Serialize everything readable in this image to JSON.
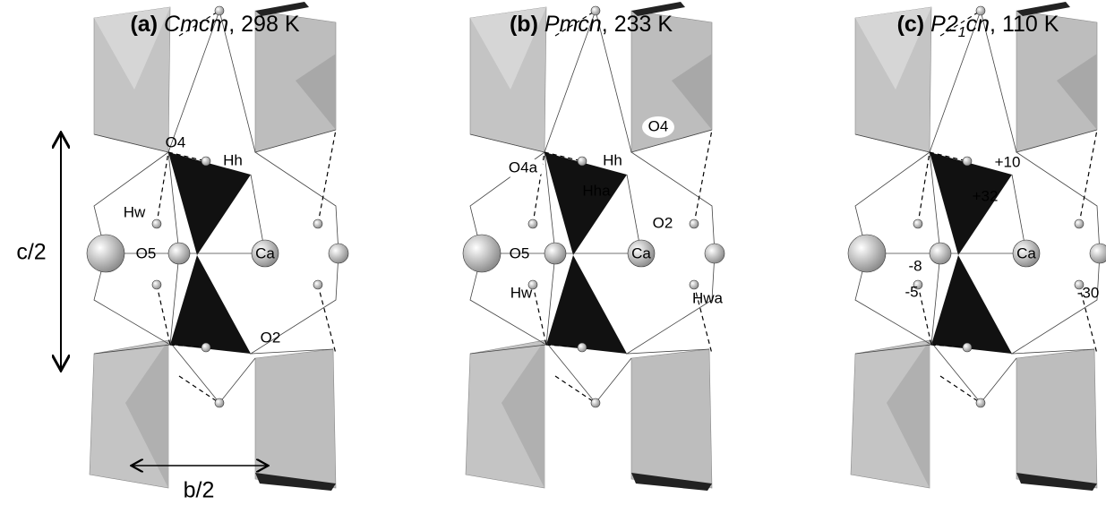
{
  "panels": [
    {
      "label": "(a)",
      "space_group": [
        {
          "text": "Cmcm"
        }
      ],
      "suffix": ", 298 K",
      "atoms": [
        "O4",
        "Hh",
        "Hw",
        "O5",
        "Ca",
        "O2"
      ]
    },
    {
      "label": "(b)",
      "space_group": [
        {
          "text": "Pmcn"
        }
      ],
      "suffix": ", 233 K",
      "atoms": [
        "Hh",
        "O4",
        "O4a",
        "Hha",
        "O2",
        "O5",
        "Ca",
        "Hw",
        "Hwa"
      ]
    },
    {
      "label": "(c)",
      "space_group": [
        {
          "text": "P2"
        },
        {
          "text": "1",
          "sub": true
        },
        {
          "text": "cn"
        }
      ],
      "suffix": ", 110 K",
      "atoms": [
        "+10",
        "+32",
        "-8",
        "Ca",
        "-5",
        "-30"
      ]
    }
  ],
  "axes": {
    "c": "c/2",
    "b": "b/2"
  }
}
